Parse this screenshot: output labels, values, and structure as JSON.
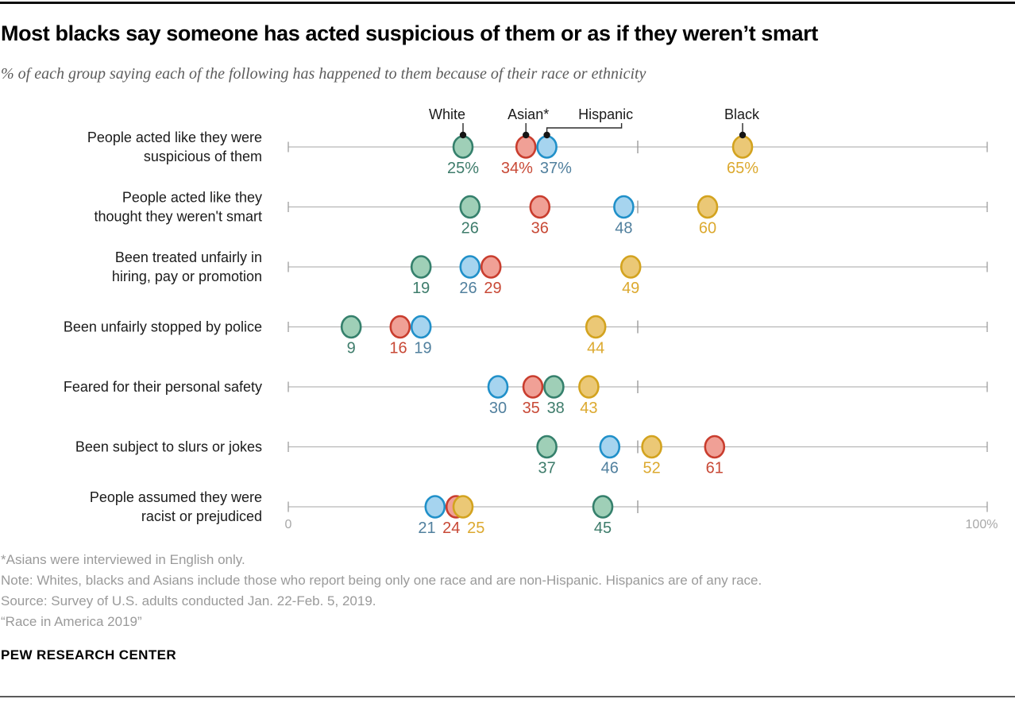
{
  "header": {
    "title": "Most blacks say someone has acted suspicious of them or as if they weren’t smart",
    "subtitle": "% of each group saying each of the following has happened to them because of their race or ethnicity"
  },
  "chart_data": {
    "type": "scatter",
    "subtype": "dot-plot",
    "title": "Most blacks say someone has acted suspicious of them or as if they weren’t smart",
    "axis": {
      "min": 0,
      "max": 100,
      "min_label": "0",
      "max_label": "100%",
      "mid_tick": 50,
      "grid": false
    },
    "legend_position": "top",
    "series": [
      {
        "id": "white",
        "name": "White",
        "fill": "#9FCFB7",
        "stroke": "#35806C",
        "label_color": "#3E7C6B",
        "values": [
          25,
          26,
          19,
          9,
          38,
          37,
          45
        ]
      },
      {
        "id": "asian",
        "name": "Asian*",
        "fill": "#F0A096",
        "stroke": "#C93D2E",
        "label_color": "#C84936",
        "values": [
          34,
          36,
          29,
          16,
          35,
          61,
          24
        ]
      },
      {
        "id": "hispanic",
        "name": "Hispanic",
        "fill": "#A6D4EF",
        "stroke": "#2090C9",
        "label_color": "#51809E",
        "values": [
          37,
          48,
          26,
          19,
          30,
          46,
          21
        ]
      },
      {
        "id": "black",
        "name": "Black",
        "fill": "#EBC876",
        "stroke": "#D3A31F",
        "label_color": "#DCA92F",
        "values": [
          65,
          60,
          49,
          44,
          43,
          52,
          25
        ]
      }
    ],
    "categories": [
      "People acted like they were suspicious of them",
      "People acted like they thought they weren't smart",
      "Been treated unfairly in hiring, pay or promotion",
      "Been unfairly stopped by police",
      "Feared for their personal safety",
      "Been subject to slurs or jokes",
      "People assumed they were racist or prejudiced"
    ],
    "category_lines": [
      [
        "People acted like they were",
        "suspicious of them"
      ],
      [
        "People acted like they",
        "thought they weren't smart"
      ],
      [
        "Been treated unfairly in",
        "hiring, pay or promotion"
      ],
      [
        "Been unfairly stopped by police"
      ],
      [
        "Feared for their personal safety"
      ],
      [
        "Been subject to slurs or jokes"
      ],
      [
        "People assumed they were",
        "racist or prejudiced"
      ]
    ],
    "value_labels": [
      [
        "25%",
        "34%",
        "37%",
        "65%"
      ],
      [
        "26",
        "36",
        "48",
        "60"
      ],
      [
        "19",
        "29",
        "26",
        "49"
      ],
      [
        "9",
        "16",
        "19",
        "44"
      ],
      [
        "38",
        "35",
        "30",
        "43"
      ],
      [
        "37",
        "61",
        "46",
        "52"
      ],
      [
        "45",
        "24",
        "21",
        "25"
      ]
    ]
  },
  "footer": {
    "lines": [
      "*Asians were interviewed in English only.",
      "Note: Whites, blacks and Asians include those who report being only one race and are non-Hispanic. Hispanics are of any race.",
      "Source: Survey of U.S. adults conducted Jan. 22-Feb. 5, 2019.",
      "“Race in America 2019”"
    ],
    "brand": "PEW RESEARCH CENTER"
  }
}
